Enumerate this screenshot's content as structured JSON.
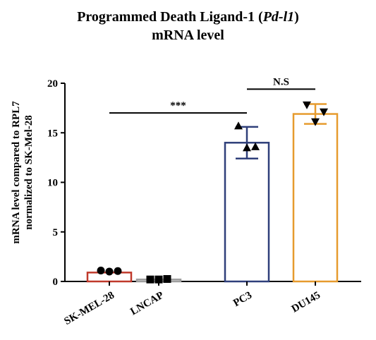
{
  "chart_data": {
    "type": "bar",
    "title_prefix": "Programmed Death Ligand-1 (",
    "title_gene": "Pd-l1",
    "title_suffix": ")",
    "title_line2": "mRNA level",
    "ylabel_line1": "mRNA level compared to RPL7",
    "ylabel_line2": "normalized to SK-Mel-28",
    "xlabel": "",
    "ylim": [
      0,
      20
    ],
    "yticks": [
      "0",
      "5",
      "10",
      "15",
      "20"
    ],
    "categories": [
      "SK-MEL-28",
      "LNCAP",
      "PC3",
      "DU145"
    ],
    "values": [
      0.9,
      0.2,
      14.0,
      16.9
    ],
    "errors": [
      0,
      0,
      1.6,
      1.0
    ],
    "colors": [
      "#c0392b",
      "#9e9e9e",
      "#2f3f7a",
      "#e69b2e"
    ],
    "points": [
      {
        "shape": "circle",
        "values": [
          1.1,
          1.0,
          1.05
        ]
      },
      {
        "shape": "square",
        "values": [
          0.2,
          0.2,
          0.25
        ]
      },
      {
        "shape": "triangle-up",
        "values": [
          15.7,
          13.5,
          13.6
        ]
      },
      {
        "shape": "triangle-down",
        "values": [
          17.8,
          16.1,
          17.1
        ]
      }
    ],
    "significance": [
      {
        "from": 0,
        "to": 2,
        "label": "***",
        "y": 17.0
      },
      {
        "from": 2,
        "to": 3,
        "label": "N.S",
        "y": 19.4
      }
    ]
  }
}
